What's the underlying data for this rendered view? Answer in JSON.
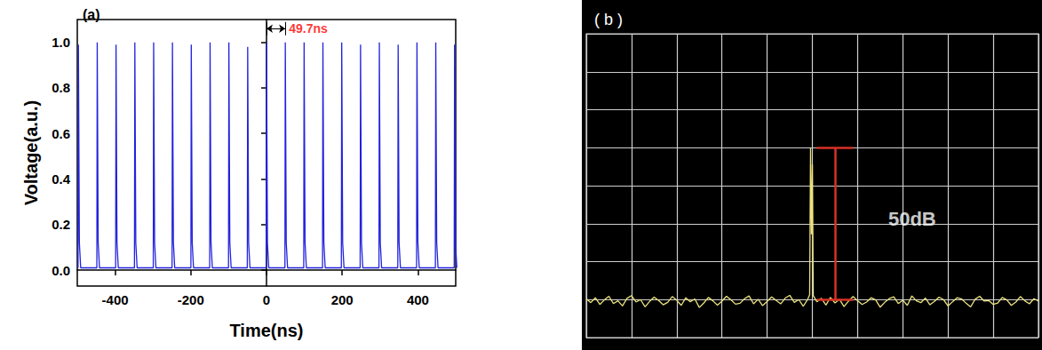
{
  "chart_data": [
    {
      "type": "line",
      "panel_label": "(a)",
      "x_label": "Time(ns)",
      "y_label": "Voltage(a.u.)",
      "color": "#2222dd",
      "x": [
        -498,
        -497,
        -494.5,
        -491,
        -448.3,
        -447.3,
        -444.8,
        -441.3,
        -398.6,
        -397.6,
        -395.1,
        -391.6,
        -348.9,
        -347.9,
        -345.4,
        -341.9,
        -299.2,
        -298.2,
        -295.7,
        -292.2,
        -249.5,
        -248.5,
        -246,
        -242.5,
        -199.8,
        -198.8,
        -196.3,
        -192.8,
        -150.1,
        -149.1,
        -146.6,
        -143.1,
        -100.4,
        -99.4,
        -96.9,
        -93.4,
        -50.7,
        -49.7,
        -47.2,
        -43.7,
        -1,
        0,
        2.5,
        6,
        48.7,
        49.7,
        52.2,
        55.7,
        98.4,
        99.4,
        101.9,
        105.4,
        148.1,
        149.1,
        151.6,
        155.1,
        197.8,
        198.8,
        201.3,
        204.8,
        247.5,
        248.5,
        251,
        254.5,
        297.2,
        298.2,
        300.7,
        304.2,
        346.9,
        347.9,
        350.4,
        353.9,
        396.6,
        397.6,
        400.1,
        403.6,
        446.3,
        447.3,
        449.8,
        453.3,
        496,
        497,
        499.5,
        503
      ],
      "values": [
        0.01,
        0.99,
        0.12,
        0.01,
        0.01,
        1.0,
        0.12,
        0.01,
        0.01,
        0.99,
        0.12,
        0.01,
        0.01,
        1.0,
        0.12,
        0.01,
        0.01,
        1.0,
        0.12,
        0.01,
        0.01,
        1.0,
        0.12,
        0.01,
        0.01,
        0.99,
        0.12,
        0.01,
        0.01,
        1.0,
        0.12,
        0.01,
        0.01,
        1.0,
        0.12,
        0.01,
        0.01,
        0.98,
        0.12,
        0.01,
        0.01,
        1.0,
        0.12,
        0.01,
        0.01,
        1.0,
        0.12,
        0.01,
        0.01,
        1.0,
        0.12,
        0.01,
        0.01,
        1.0,
        0.12,
        0.01,
        0.01,
        1.0,
        0.12,
        0.01,
        0.01,
        0.99,
        0.12,
        0.01,
        0.01,
        1.0,
        0.12,
        0.01,
        0.01,
        0.99,
        0.12,
        0.01,
        0.01,
        1.0,
        0.12,
        0.01,
        0.01,
        1.0,
        0.12,
        0.01,
        0.01,
        0.99,
        0.12,
        0.01
      ],
      "xlim": [
        -500,
        500
      ],
      "xticks": [
        -400,
        -200,
        0,
        200,
        400
      ],
      "ylim": [
        -0.07,
        1.1
      ],
      "yticks": [
        {
          "value": 0,
          "label": "0.0"
        },
        {
          "value": 0.2,
          "label": "0.2"
        },
        {
          "value": 0.4,
          "label": "0.4"
        },
        {
          "value": 0.6,
          "label": "0.6"
        },
        {
          "value": 0.8,
          "label": "0.8"
        },
        {
          "value": 1.0,
          "label": "1.0"
        }
      ],
      "grid": false,
      "annotations": [
        {
          "text": "49.7ns",
          "x": [
            0,
            49.7
          ],
          "y": 1.06,
          "color": "#ff0000"
        }
      ]
    },
    {
      "type": "line",
      "panel_label": "( b )",
      "color": "#ece27e",
      "x": [
        0,
        0.1,
        0.2,
        0.3,
        0.4,
        0.5,
        0.6,
        0.7,
        0.8,
        0.9,
        1.0,
        1.1,
        1.2,
        1.3,
        1.4,
        1.5,
        1.6,
        1.7,
        1.8,
        1.9,
        2.0,
        2.1,
        2.2,
        2.3,
        2.4,
        2.5,
        2.6,
        2.7,
        2.8,
        2.9,
        3.0,
        3.1,
        3.2,
        3.3,
        3.4,
        3.5,
        3.6,
        3.7,
        3.8,
        3.9,
        4.0,
        4.1,
        4.2,
        4.3,
        4.4,
        4.5,
        4.6,
        4.7,
        4.8,
        4.9,
        4.94,
        4.96,
        4.98,
        5.0,
        5.02,
        5.1,
        5.2,
        5.3,
        5.4,
        5.5,
        5.6,
        5.7,
        5.8,
        5.9,
        6.0,
        6.1,
        6.2,
        6.3,
        6.4,
        6.5,
        6.6,
        6.7,
        6.8,
        6.9,
        7.0,
        7.1,
        7.2,
        7.3,
        7.4,
        7.5,
        7.6,
        7.7,
        7.8,
        7.9,
        8.0,
        8.1,
        8.2,
        8.3,
        8.4,
        8.5,
        8.6,
        8.7,
        8.8,
        8.9,
        9.0,
        9.1,
        9.2,
        9.3,
        9.4,
        9.5,
        9.6,
        9.7,
        9.8,
        9.9,
        10.0
      ],
      "values": [
        -87.2,
        -88.5,
        -86.9,
        -89.1,
        -87.6,
        -86.4,
        -88.8,
        -87.9,
        -89.6,
        -87.1,
        -86.2,
        -88.3,
        -87.5,
        -89.9,
        -88.1,
        -86.7,
        -87.8,
        -89.2,
        -88.4,
        -86.5,
        -87.7,
        -89.4,
        -86.9,
        -88.2,
        -87.3,
        -90.1,
        -88.6,
        -86.8,
        -87.9,
        -89.3,
        -88.0,
        -86.4,
        -87.6,
        -89.0,
        -88.7,
        -87.2,
        -86.3,
        -88.9,
        -87.4,
        -89.5,
        -88.1,
        -86.6,
        -87.8,
        -88.9,
        -87.0,
        -86.1,
        -88.4,
        -87.5,
        -89.7,
        -87.3,
        -85.9,
        -37.5,
        -66.0,
        -43.0,
        -86.2,
        -88.2,
        -87.1,
        -89.3,
        -86.8,
        -88.6,
        -87.4,
        -89.8,
        -88.0,
        -86.5,
        -87.9,
        -89.1,
        -88.3,
        -86.9,
        -87.6,
        -90.0,
        -88.4,
        -87.2,
        -86.6,
        -88.8,
        -87.7,
        -89.4,
        -86.3,
        -87.9,
        -88.5,
        -87.0,
        -89.2,
        -88.1,
        -86.7,
        -87.5,
        -89.6,
        -88.2,
        -86.9,
        -87.3,
        -88.7,
        -89.9,
        -87.4,
        -86.4,
        -88.0,
        -87.8,
        -89.1,
        -88.6,
        -86.8,
        -87.6,
        -89.4,
        -88.3,
        -86.5,
        -87.9,
        -88.9,
        -87.2,
        -88.0
      ],
      "xlim": [
        0,
        10
      ],
      "xticks": [
        0,
        1,
        2,
        3,
        4,
        5,
        6,
        7,
        8,
        9,
        10
      ],
      "ylim": [
        -100,
        0
      ],
      "yticks": [
        -100,
        -87.5,
        -75,
        -62.5,
        -50,
        -37.5,
        -25,
        -12.5,
        0
      ],
      "grid": true,
      "tick_labels": false,
      "annotations": [
        {
          "text": "50dB",
          "x": 6.6,
          "y": -61,
          "color": "#ffffff",
          "bracket": {
            "x": 5.5,
            "y": [
              -87.5,
              -37.5
            ],
            "color": "#d93025"
          }
        }
      ]
    }
  ]
}
